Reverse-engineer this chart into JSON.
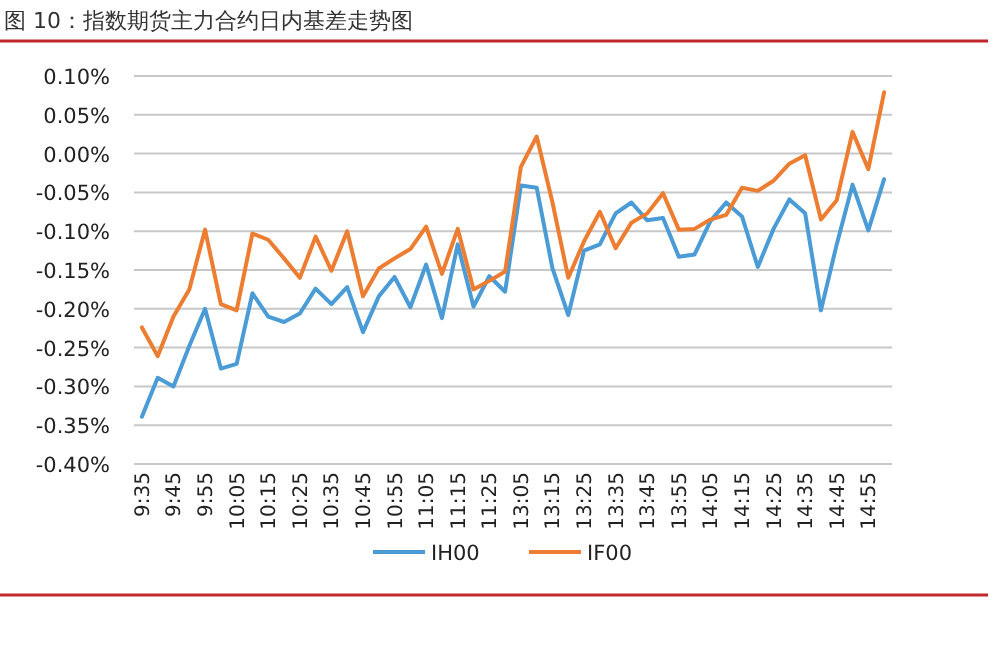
{
  "chart_data": {
    "type": "line",
    "title": "图 10：指数期货主力合约日内基差走势图",
    "categories": [
      "9:35",
      null,
      "9:45",
      null,
      "9:55",
      null,
      "10:05",
      null,
      "10:15",
      null,
      "10:25",
      null,
      "10:35",
      null,
      "10:45",
      null,
      "10:55",
      null,
      "11:05",
      null,
      "11:15",
      null,
      "11:25",
      null,
      "13:05",
      null,
      "13:15",
      null,
      "13:25",
      null,
      "13:35",
      null,
      "13:45",
      null,
      "13:55",
      null,
      "14:05",
      null,
      "14:15",
      null,
      "14:25",
      null,
      "14:35",
      null,
      "14:45",
      null,
      "14:55",
      null
    ],
    "series": [
      {
        "name": "IH00",
        "color": "#4a9bd6",
        "values": [
          -0.339,
          -0.289,
          -0.3,
          -0.248,
          -0.2,
          -0.277,
          -0.271,
          -0.18,
          -0.21,
          -0.217,
          -0.206,
          -0.174,
          -0.194,
          -0.172,
          -0.23,
          -0.184,
          -0.159,
          -0.198,
          -0.143,
          -0.212,
          -0.117,
          -0.197,
          -0.158,
          -0.178,
          -0.041,
          -0.044,
          -0.148,
          -0.208,
          -0.125,
          -0.117,
          -0.077,
          -0.063,
          -0.086,
          -0.083,
          -0.133,
          -0.13,
          -0.087,
          -0.063,
          -0.081,
          -0.146,
          -0.097,
          -0.059,
          -0.077,
          -0.202,
          -0.117,
          -0.04,
          -0.099,
          -0.033
        ]
      },
      {
        "name": "IF00",
        "color": "#ed7d31",
        "values": [
          -0.224,
          -0.261,
          -0.21,
          -0.175,
          -0.098,
          -0.194,
          -0.202,
          -0.103,
          -0.111,
          -0.135,
          -0.16,
          -0.107,
          -0.151,
          -0.1,
          -0.184,
          -0.148,
          -0.135,
          -0.123,
          -0.094,
          -0.155,
          -0.097,
          -0.175,
          -0.164,
          -0.152,
          -0.017,
          0.022,
          -0.063,
          -0.16,
          -0.113,
          -0.075,
          -0.122,
          -0.089,
          -0.077,
          -0.051,
          -0.098,
          -0.097,
          -0.085,
          -0.079,
          -0.044,
          -0.048,
          -0.035,
          -0.013,
          -0.002,
          -0.085,
          -0.06,
          0.028,
          -0.02,
          0.079
        ]
      }
    ],
    "ylim": [
      -0.4,
      0.1
    ],
    "yticks": [
      {
        "value": 0.1,
        "label": "0.10%"
      },
      {
        "value": 0.05,
        "label": "0.05%"
      },
      {
        "value": 0,
        "label": "0.00%"
      },
      {
        "value": -0.05,
        "label": "-0.05%"
      },
      {
        "value": -0.1,
        "label": "-0.10%"
      },
      {
        "value": -0.15,
        "label": "-0.15%"
      },
      {
        "value": -0.2,
        "label": "-0.20%"
      },
      {
        "value": -0.25,
        "label": "-0.25%"
      },
      {
        "value": -0.3,
        "label": "-0.30%"
      },
      {
        "value": -0.35,
        "label": "-0.35%"
      },
      {
        "value": -0.4,
        "label": "-0.40%"
      }
    ],
    "grid": "y",
    "legend": "bottom"
  }
}
